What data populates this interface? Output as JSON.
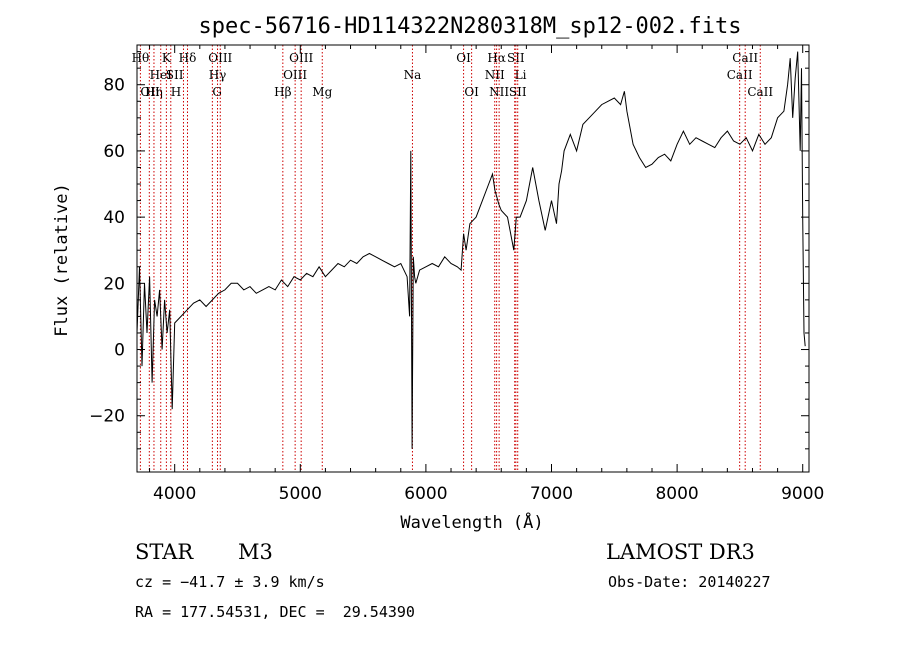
{
  "chart_data": {
    "type": "line",
    "title": "spec-56716-HD114322N280318M_sp12-002.fits",
    "xlabel": "Wavelength (Å)",
    "ylabel": "Flux (relative)",
    "xlim": [
      3700,
      9050
    ],
    "ylim": [
      -37,
      92
    ],
    "xticks": [
      4000,
      5000,
      6000,
      7000,
      8000,
      9000
    ],
    "yticks": [
      -20,
      0,
      20,
      40,
      60,
      80
    ],
    "series": [
      {
        "name": "flux",
        "x": [
          3700,
          3720,
          3740,
          3760,
          3780,
          3800,
          3820,
          3840,
          3860,
          3880,
          3900,
          3920,
          3940,
          3960,
          3980,
          4000,
          4050,
          4100,
          4150,
          4200,
          4250,
          4300,
          4350,
          4400,
          4450,
          4500,
          4550,
          4600,
          4650,
          4700,
          4750,
          4800,
          4850,
          4900,
          4950,
          5000,
          5050,
          5100,
          5150,
          5200,
          5250,
          5300,
          5350,
          5400,
          5450,
          5500,
          5550,
          5600,
          5650,
          5700,
          5750,
          5800,
          5850,
          5870,
          5880,
          5890,
          5895,
          5900,
          5910,
          5920,
          5950,
          6000,
          6050,
          6100,
          6150,
          6200,
          6250,
          6280,
          6300,
          6320,
          6350,
          6400,
          6450,
          6500,
          6530,
          6550,
          6565,
          6580,
          6600,
          6650,
          6700,
          6720,
          6750,
          6800,
          6850,
          6900,
          6950,
          7000,
          7040,
          7060,
          7080,
          7100,
          7150,
          7200,
          7250,
          7300,
          7350,
          7400,
          7450,
          7500,
          7550,
          7580,
          7600,
          7650,
          7700,
          7750,
          7800,
          7850,
          7900,
          7950,
          8000,
          8050,
          8100,
          8150,
          8200,
          8250,
          8300,
          8350,
          8400,
          8450,
          8500,
          8550,
          8600,
          8650,
          8700,
          8750,
          8800,
          8850,
          8880,
          8900,
          8920,
          8940,
          8960,
          8980,
          8990,
          9000,
          9010,
          9020
        ],
        "y": [
          5,
          25,
          -5,
          20,
          5,
          22,
          -10,
          15,
          10,
          18,
          0,
          15,
          5,
          12,
          -18,
          8,
          10,
          12,
          14,
          15,
          13,
          15,
          17,
          18,
          20,
          20,
          18,
          19,
          17,
          18,
          19,
          18,
          21,
          19,
          22,
          21,
          23,
          22,
          25,
          22,
          24,
          26,
          25,
          27,
          26,
          28,
          29,
          28,
          27,
          26,
          25,
          26,
          22,
          10,
          60,
          -30,
          0,
          28,
          22,
          20,
          24,
          25,
          26,
          25,
          28,
          26,
          25,
          24,
          35,
          30,
          38,
          40,
          45,
          50,
          53,
          48,
          46,
          44,
          42,
          40,
          30,
          40,
          40,
          45,
          55,
          45,
          36,
          45,
          38,
          50,
          54,
          60,
          65,
          60,
          68,
          70,
          72,
          74,
          75,
          76,
          74,
          78,
          72,
          62,
          58,
          55,
          56,
          58,
          59,
          57,
          62,
          66,
          62,
          64,
          63,
          62,
          61,
          64,
          66,
          63,
          62,
          64,
          60,
          65,
          62,
          64,
          70,
          72,
          80,
          88,
          70,
          82,
          90,
          60,
          85,
          40,
          5,
          1
        ]
      }
    ],
    "lines": [
      {
        "x": 3727,
        "label": "OII",
        "row": 2,
        "anchor": "start"
      },
      {
        "x": 3798,
        "label": "Hθ",
        "row": 0,
        "anchor": "end"
      },
      {
        "x": 3835,
        "label": "Hη",
        "row": 2,
        "anchor": "middle"
      },
      {
        "x": 3889,
        "label": "HeI",
        "row": 1,
        "anchor": "middle"
      },
      {
        "x": 3934,
        "label": "K",
        "row": 0,
        "anchor": "middle"
      },
      {
        "x": 3969,
        "label": "H",
        "row": 2,
        "anchor": "start"
      },
      {
        "x": 4070,
        "label": "SII",
        "row": 1,
        "anchor": "end"
      },
      {
        "x": 4102,
        "label": "Hδ",
        "row": 0,
        "anchor": "middle"
      },
      {
        "x": 4300,
        "label": "G",
        "row": 2,
        "anchor": "start"
      },
      {
        "x": 4341,
        "label": "Hγ",
        "row": 1,
        "anchor": "middle"
      },
      {
        "x": 4363,
        "label": "OIII",
        "row": 0,
        "anchor": "middle"
      },
      {
        "x": 4861,
        "label": "Hβ",
        "row": 2,
        "anchor": "middle"
      },
      {
        "x": 4959,
        "label": "OIII",
        "row": 1,
        "anchor": "middle"
      },
      {
        "x": 5007,
        "label": "OIII",
        "row": 0,
        "anchor": "middle"
      },
      {
        "x": 5175,
        "label": "Mg",
        "row": 2,
        "anchor": "middle"
      },
      {
        "x": 5893,
        "label": "Na",
        "row": 1,
        "anchor": "middle"
      },
      {
        "x": 6300,
        "label": "OI",
        "row": 0,
        "anchor": "middle"
      },
      {
        "x": 6364,
        "label": "OI",
        "row": 2,
        "anchor": "middle"
      },
      {
        "x": 6548,
        "label": "NII",
        "row": 1,
        "anchor": "middle"
      },
      {
        "x": 6563,
        "label": "Hα",
        "row": 0,
        "anchor": "middle"
      },
      {
        "x": 6583,
        "label": "NII",
        "row": 2,
        "anchor": "middle"
      },
      {
        "x": 6707,
        "label": "Li",
        "row": 1,
        "anchor": "start"
      },
      {
        "x": 6716,
        "label": "SII",
        "row": 0,
        "anchor": "middle"
      },
      {
        "x": 6731,
        "label": "SII",
        "row": 2,
        "anchor": "middle"
      },
      {
        "x": 8498,
        "label": "CaII",
        "row": 1,
        "anchor": "middle"
      },
      {
        "x": 8542,
        "label": "CaII",
        "row": 0,
        "anchor": "middle"
      },
      {
        "x": 8662,
        "label": "CaII",
        "row": 2,
        "anchor": "middle"
      }
    ],
    "line_color": "#cc0000",
    "spectrum_color": "#000000"
  },
  "info": {
    "class": "STAR",
    "subclass": "M3",
    "survey": "LAMOST DR3",
    "cz": "cz = −41.7 ± 3.9 km/s",
    "obsdate": "Obs-Date: 20140227",
    "radec": "RA = 177.54531, DEC =  29.54390"
  }
}
